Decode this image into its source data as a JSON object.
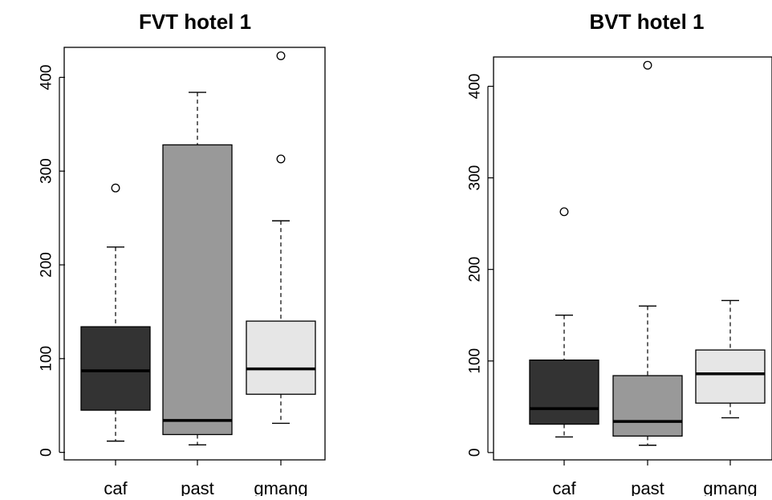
{
  "chart_data": [
    {
      "type": "box",
      "title": "FVT hotel 1",
      "xlabel": "",
      "ylabel": "",
      "categories": [
        "caf",
        "past",
        "gmang"
      ],
      "yticks": [
        0,
        100,
        200,
        300,
        400
      ],
      "tick_labels": [
        "0",
        "100",
        "200",
        "300",
        "400"
      ],
      "ylim": [
        -8,
        432
      ],
      "grid": false,
      "legend": "none",
      "fills": [
        "#333333",
        "#999999",
        "#e6e6e6"
      ],
      "boxes": [
        {
          "min": 12,
          "q1": 45,
          "median": 87,
          "q3": 134,
          "max": 219,
          "outliers": [
            282
          ]
        },
        {
          "min": 8,
          "q1": 19,
          "median": 34,
          "q3": 328,
          "max": 384,
          "outliers": []
        },
        {
          "min": 31,
          "q1": 62,
          "median": 89,
          "q3": 140,
          "max": 247,
          "outliers": [
            313,
            423
          ]
        }
      ]
    },
    {
      "type": "box",
      "title": "BVT hotel 1",
      "xlabel": "",
      "ylabel": "",
      "categories": [
        "caf",
        "past",
        "gmang"
      ],
      "yticks": [
        0,
        100,
        200,
        300,
        400
      ],
      "tick_labels": [
        "0",
        "100",
        "200",
        "300",
        "400"
      ],
      "ylim": [
        -8,
        432
      ],
      "grid": false,
      "legend": "none",
      "fills": [
        "#333333",
        "#999999",
        "#e6e6e6"
      ],
      "boxes": [
        {
          "min": 17,
          "q1": 31,
          "median": 48,
          "q3": 101,
          "max": 150,
          "outliers": [
            263
          ]
        },
        {
          "min": 8,
          "q1": 18,
          "median": 34,
          "q3": 84,
          "max": 160,
          "outliers": [
            423
          ]
        },
        {
          "min": 38,
          "q1": 54,
          "median": 86,
          "q3": 112,
          "max": 166,
          "outliers": []
        }
      ]
    }
  ]
}
